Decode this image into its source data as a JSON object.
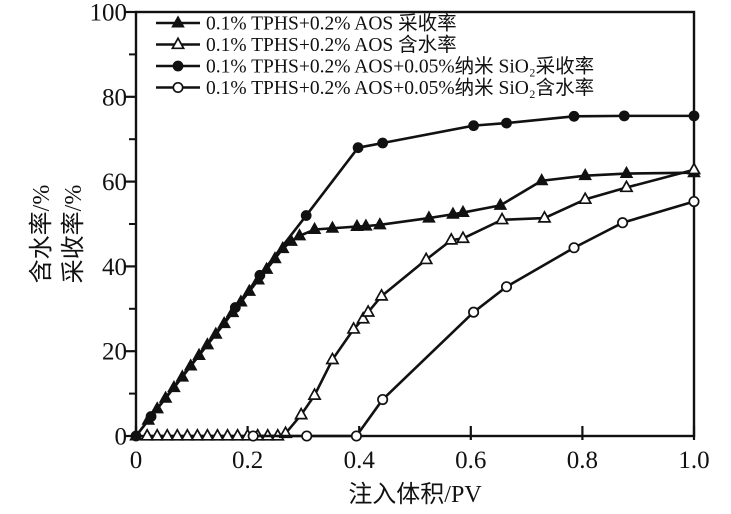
{
  "chart_data": {
    "type": "line",
    "title": "",
    "xlabel": "注入体积/PV",
    "ylabel_lines": [
      "含水率/%",
      "采收率/%"
    ],
    "xlim": [
      0,
      1.0
    ],
    "ylim": [
      0,
      100
    ],
    "x_ticks": [
      0,
      0.2,
      0.4,
      0.6,
      0.8,
      1.0
    ],
    "x_tick_labels": [
      "0",
      "0.2",
      "0.4",
      "0.6",
      "0.8",
      "1.0"
    ],
    "y_ticks": [
      0,
      20,
      40,
      60,
      80,
      100
    ],
    "y_tick_labels": [
      "0",
      "20",
      "40",
      "60",
      "80",
      "100"
    ],
    "y_minor_ticks": [
      10,
      30,
      50,
      70,
      90
    ],
    "grid": false,
    "legend_position": "top-left-inside",
    "line_color": "#111111",
    "background": "#ffffff",
    "series": [
      {
        "name": "0.1% TPHS+0.2% AOS 采收率",
        "marker": "triangle-filled",
        "points": [
          [
            0,
            0
          ],
          [
            0.022,
            3.7
          ],
          [
            0.038,
            6.4
          ],
          [
            0.053,
            8.9
          ],
          [
            0.068,
            11.4
          ],
          [
            0.083,
            13.9
          ],
          [
            0.098,
            16.5
          ],
          [
            0.113,
            19
          ],
          [
            0.128,
            21.5
          ],
          [
            0.143,
            24
          ],
          [
            0.158,
            26.5
          ],
          [
            0.173,
            29.1
          ],
          [
            0.188,
            31.6
          ],
          [
            0.203,
            34.1
          ],
          [
            0.219,
            36.8
          ],
          [
            0.234,
            39.3
          ],
          [
            0.249,
            41.8
          ],
          [
            0.263,
            44.2
          ],
          [
            0.278,
            45.9
          ],
          [
            0.293,
            47.2
          ],
          [
            0.32,
            48.7
          ],
          [
            0.352,
            49
          ],
          [
            0.396,
            49.4
          ],
          [
            0.412,
            49.5
          ],
          [
            0.437,
            49.8
          ],
          [
            0.525,
            51.4
          ],
          [
            0.568,
            52.3
          ],
          [
            0.586,
            52.7
          ],
          [
            0.653,
            54.4
          ],
          [
            0.727,
            60.2
          ],
          [
            0.805,
            61.4
          ],
          [
            0.879,
            61.9
          ],
          [
            1,
            62.1
          ]
        ]
      },
      {
        "name": "0.1% TPHS+0.2% AOS 含水率",
        "marker": "triangle-open",
        "points": [
          [
            0.02,
            0
          ],
          [
            0.038,
            0
          ],
          [
            0.056,
            0
          ],
          [
            0.074,
            0
          ],
          [
            0.092,
            0
          ],
          [
            0.11,
            0
          ],
          [
            0.128,
            0
          ],
          [
            0.146,
            0
          ],
          [
            0.164,
            0
          ],
          [
            0.182,
            0
          ],
          [
            0.2,
            0
          ],
          [
            0.218,
            0
          ],
          [
            0.236,
            0
          ],
          [
            0.254,
            0
          ],
          [
            0.268,
            0.6
          ],
          [
            0.296,
            5
          ],
          [
            0.32,
            9.6
          ],
          [
            0.352,
            18
          ],
          [
            0.39,
            25.2
          ],
          [
            0.407,
            27.6
          ],
          [
            0.416,
            29.2
          ],
          [
            0.44,
            33
          ],
          [
            0.52,
            41.6
          ],
          [
            0.565,
            46.2
          ],
          [
            0.586,
            46.6
          ],
          [
            0.656,
            51
          ],
          [
            0.732,
            51.4
          ],
          [
            0.805,
            55.8
          ],
          [
            0.879,
            58.6
          ],
          [
            1,
            62.8
          ]
        ]
      },
      {
        "name": "0.1% TPHS+0.2% AOS+0.05%纳米 SiO₂采收率",
        "marker": "circle-filled",
        "points": [
          [
            0,
            0
          ],
          [
            0.027,
            4.6
          ],
          [
            0.178,
            30.3
          ],
          [
            0.222,
            37.9
          ],
          [
            0.305,
            52
          ],
          [
            0.398,
            68
          ],
          [
            0.442,
            69.1
          ],
          [
            0.605,
            73.2
          ],
          [
            0.664,
            73.8
          ],
          [
            0.785,
            75.4
          ],
          [
            0.875,
            75.5
          ],
          [
            1,
            75.5
          ]
        ]
      },
      {
        "name": "0.1% TPHS+0.2% AOS+0.05%纳米 SiO₂含水率",
        "marker": "circle-open",
        "points": [
          [
            0.21,
            0
          ],
          [
            0.306,
            0
          ],
          [
            0.395,
            0
          ],
          [
            0.442,
            8.6
          ],
          [
            0.605,
            29.2
          ],
          [
            0.664,
            35.2
          ],
          [
            0.785,
            44.4
          ],
          [
            0.872,
            50.3
          ],
          [
            1,
            55.3
          ]
        ]
      }
    ]
  }
}
